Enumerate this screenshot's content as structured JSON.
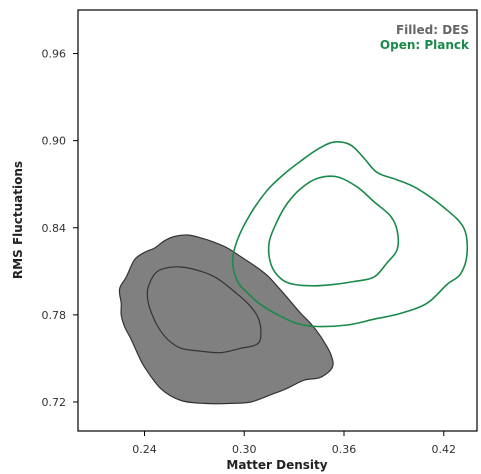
{
  "chart_data": {
    "type": "contour",
    "xlabel": "Matter Density",
    "ylabel": "RMS Fluctuations",
    "xlim": [
      0.2,
      0.44
    ],
    "ylim": [
      0.7,
      0.99
    ],
    "xticks": [
      0.24,
      0.3,
      0.36,
      0.42
    ],
    "yticks": [
      0.72,
      0.78,
      0.84,
      0.9,
      0.96
    ],
    "grid": false,
    "legend": {
      "placement": "top-right",
      "entries": [
        {
          "text": "Filled:  DES",
          "color": "#666666"
        },
        {
          "text": "Open:  Planck",
          "color": "#1a8a4a"
        }
      ]
    },
    "series": [
      {
        "style": "filled",
        "color": "#808080",
        "edge": "#333333",
        "contours": [
          {
            "level": "outer",
            "points": [
              [
                0.229,
                0.806
              ],
              [
                0.234,
                0.818
              ],
              [
                0.24,
                0.823
              ],
              [
                0.246,
                0.826
              ],
              [
                0.252,
                0.831
              ],
              [
                0.258,
                0.834
              ],
              [
                0.266,
                0.835
              ],
              [
                0.274,
                0.833
              ],
              [
                0.282,
                0.83
              ],
              [
                0.29,
                0.826
              ],
              [
                0.298,
                0.82
              ],
              [
                0.306,
                0.814
              ],
              [
                0.314,
                0.807
              ],
              [
                0.322,
                0.797
              ],
              [
                0.328,
                0.789
              ],
              [
                0.334,
                0.781
              ],
              [
                0.34,
                0.774
              ],
              [
                0.346,
                0.765
              ],
              [
                0.352,
                0.753
              ],
              [
                0.353,
                0.744
              ],
              [
                0.346,
                0.737
              ],
              [
                0.336,
                0.735
              ],
              [
                0.325,
                0.729
              ],
              [
                0.316,
                0.725
              ],
              [
                0.304,
                0.72
              ],
              [
                0.292,
                0.719
              ],
              [
                0.276,
                0.719
              ],
              [
                0.262,
                0.721
              ],
              [
                0.25,
                0.729
              ],
              [
                0.24,
                0.744
              ],
              [
                0.236,
                0.753
              ],
              [
                0.232,
                0.763
              ],
              [
                0.228,
                0.772
              ],
              [
                0.226,
                0.78
              ],
              [
                0.226,
                0.788
              ],
              [
                0.225,
                0.798
              ]
            ]
          },
          {
            "level": "inner",
            "points": [
              [
                0.242,
                0.798
              ],
              [
                0.246,
                0.808
              ],
              [
                0.252,
                0.812
              ],
              [
                0.262,
                0.813
              ],
              [
                0.274,
                0.81
              ],
              [
                0.284,
                0.805
              ],
              [
                0.294,
                0.796
              ],
              [
                0.302,
                0.788
              ],
              [
                0.308,
                0.779
              ],
              [
                0.31,
                0.768
              ],
              [
                0.308,
                0.76
              ],
              [
                0.298,
                0.757
              ],
              [
                0.286,
                0.754
              ],
              [
                0.274,
                0.755
              ],
              [
                0.262,
                0.757
              ],
              [
                0.254,
                0.763
              ],
              [
                0.248,
                0.772
              ],
              [
                0.244,
                0.782
              ],
              [
                0.242,
                0.79
              ]
            ]
          }
        ]
      },
      {
        "style": "open",
        "color": "#1a8a4a",
        "contours": [
          {
            "level": "outer",
            "points": [
              [
                0.296,
                0.803
              ],
              [
                0.293,
                0.817
              ],
              [
                0.296,
                0.832
              ],
              [
                0.304,
                0.85
              ],
              [
                0.314,
                0.866
              ],
              [
                0.324,
                0.877
              ],
              [
                0.334,
                0.886
              ],
              [
                0.344,
                0.894
              ],
              [
                0.354,
                0.899
              ],
              [
                0.364,
                0.897
              ],
              [
                0.372,
                0.888
              ],
              [
                0.38,
                0.878
              ],
              [
                0.392,
                0.873
              ],
              [
                0.404,
                0.867
              ],
              [
                0.42,
                0.854
              ],
              [
                0.432,
                0.84
              ],
              [
                0.434,
                0.822
              ],
              [
                0.43,
                0.808
              ],
              [
                0.422,
                0.801
              ],
              [
                0.41,
                0.788
              ],
              [
                0.394,
                0.781
              ],
              [
                0.378,
                0.777
              ],
              [
                0.362,
                0.773
              ],
              [
                0.344,
                0.772
              ],
              [
                0.332,
                0.774
              ],
              [
                0.322,
                0.779
              ],
              [
                0.31,
                0.787
              ],
              [
                0.302,
                0.795
              ]
            ]
          },
          {
            "level": "inner",
            "points": [
              [
                0.316,
                0.815
              ],
              [
                0.315,
                0.83
              ],
              [
                0.32,
                0.845
              ],
              [
                0.326,
                0.857
              ],
              [
                0.334,
                0.867
              ],
              [
                0.344,
                0.874
              ],
              [
                0.356,
                0.875
              ],
              [
                0.368,
                0.868
              ],
              [
                0.378,
                0.858
              ],
              [
                0.388,
                0.848
              ],
              [
                0.392,
                0.838
              ],
              [
                0.392,
                0.825
              ],
              [
                0.386,
                0.816
              ],
              [
                0.378,
                0.806
              ],
              [
                0.366,
                0.803
              ],
              [
                0.354,
                0.801
              ],
              [
                0.342,
                0.8
              ],
              [
                0.33,
                0.801
              ],
              [
                0.322,
                0.805
              ]
            ]
          }
        ]
      }
    ]
  }
}
